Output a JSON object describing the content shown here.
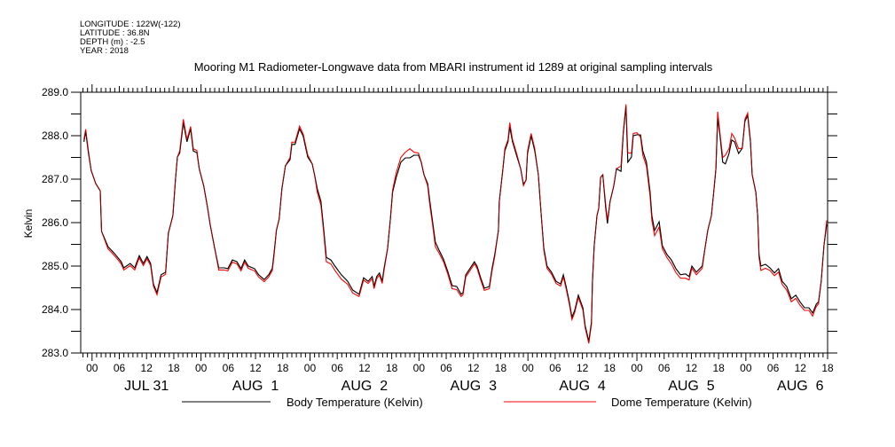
{
  "header": {
    "lines": [
      "LONGITUDE : 122W(-122)",
      "LATITUDE : 36.8N",
      "DEPTH (m) : -2.5",
      "YEAR : 2018"
    ]
  },
  "chart_data": {
    "type": "line",
    "title": "Mooring M1 Radiometer-Longwave data from MBARI instrument id 1289 at original sampling intervals",
    "ylabel": "Kelvin",
    "xlabel": "",
    "x_units": "hours since JUL 31 00:00 (2018)",
    "xlim": [
      -2.5,
      162
    ],
    "ylim": [
      283.0,
      289.0
    ],
    "y_ticks": [
      283.0,
      284.0,
      285.0,
      286.0,
      287.0,
      288.0,
      289.0
    ],
    "y_tick_labels": [
      "283.0",
      "284.0",
      "285.0",
      "286.0",
      "287.0",
      "288.0",
      "289.0"
    ],
    "x_tick_labels_cycle": [
      "00",
      "06",
      "12",
      "18"
    ],
    "day_labels": [
      "JUL 31",
      "AUG  1",
      "AUG  2",
      "AUG  3",
      "AUG  4",
      "AUG  5",
      "AUG  6"
    ],
    "legend": "bottom",
    "grid": false,
    "x": [
      -1.8,
      -1.4,
      -0.8,
      -0.2,
      0.8,
      1.8,
      2.1,
      3.5,
      5.1,
      6.4,
      7.0,
      8.4,
      9.4,
      10.4,
      11.3,
      12.1,
      12.9,
      13.5,
      14.3,
      15.2,
      16.2,
      16.8,
      17.8,
      18.4,
      18.8,
      19.3,
      20.1,
      20.9,
      21.7,
      22.3,
      23.1,
      23.6,
      24.6,
      25.4,
      26.0,
      27.0,
      27.9,
      29.1,
      29.9,
      30.9,
      31.9,
      32.8,
      33.6,
      34.4,
      35.8,
      36.7,
      37.9,
      38.9,
      39.7,
      40.1,
      40.6,
      41.2,
      41.8,
      42.6,
      43.6,
      44.0,
      44.7,
      45.7,
      46.5,
      47.5,
      48.5,
      49.0,
      49.6,
      50.4,
      51.0,
      51.6,
      52.6,
      53.5,
      54.9,
      56.3,
      57.4,
      58.8,
      59.8,
      60.8,
      61.7,
      62.1,
      62.7,
      63.3,
      63.9,
      64.3,
      65.1,
      65.7,
      66.2,
      67.0,
      68.0,
      69.0,
      70.0,
      70.9,
      71.9,
      72.5,
      73.1,
      73.9,
      74.4,
      75.0,
      75.6,
      76.4,
      77.4,
      78.4,
      79.3,
      80.3,
      81.3,
      81.7,
      82.3,
      83.2,
      84.2,
      84.8,
      85.6,
      86.4,
      87.5,
      88.1,
      88.7,
      89.5,
      89.7,
      90.5,
      90.9,
      91.6,
      92.0,
      92.6,
      93.6,
      94.4,
      95.0,
      95.6,
      95.9,
      96.7,
      97.5,
      98.3,
      98.9,
      99.5,
      100.2,
      101.2,
      102.2,
      103.2,
      103.8,
      104.4,
      105.1,
      105.7,
      106.3,
      107.1,
      108.1,
      108.6,
      109.4,
      110.0,
      110.2,
      110.6,
      111.2,
      111.6,
      112.0,
      112.5,
      113.1,
      113.5,
      114.1,
      114.9,
      115.5,
      116.5,
      117.0,
      117.6,
      118.0,
      118.8,
      119.2,
      120.0,
      120.8,
      121.3,
      122.1,
      122.9,
      123.3,
      123.9,
      124.9,
      125.6,
      126.6,
      127.6,
      128.6,
      129.6,
      130.7,
      131.5,
      132.1,
      133.1,
      134.4,
      135.0,
      135.6,
      136.4,
      137.0,
      137.4,
      137.8,
      138.3,
      138.9,
      139.5,
      140.3,
      140.9,
      141.5,
      142.4,
      143.2,
      143.8,
      144.4,
      145.0,
      145.4,
      146.2,
      146.6,
      146.9,
      147.3,
      148.3,
      149.3,
      150.3,
      151.2,
      152.0,
      153.0,
      154.0,
      155.0,
      155.9,
      156.9,
      157.9,
      158.7,
      159.5,
      160.0,
      160.6,
      161.2,
      161.8
    ],
    "series": [
      {
        "name": "Body Temperature (Kelvin)",
        "color": "#000000",
        "values": [
          287.86,
          288.1,
          287.6,
          287.2,
          286.9,
          286.73,
          285.8,
          285.45,
          285.27,
          285.1,
          284.96,
          285.06,
          284.96,
          285.24,
          285.06,
          285.22,
          285.06,
          284.59,
          284.39,
          284.8,
          284.86,
          285.76,
          286.16,
          287.04,
          287.51,
          287.6,
          288.3,
          287.86,
          288.16,
          287.65,
          287.61,
          287.24,
          286.84,
          286.37,
          285.96,
          285.41,
          284.96,
          284.96,
          284.94,
          285.14,
          285.1,
          284.94,
          285.14,
          285.0,
          284.94,
          284.8,
          284.69,
          284.8,
          284.95,
          285.3,
          285.82,
          286.08,
          286.78,
          287.31,
          287.45,
          287.8,
          287.8,
          288.16,
          287.99,
          287.51,
          287.35,
          287.1,
          286.78,
          286.49,
          285.88,
          285.2,
          285.14,
          285.0,
          284.8,
          284.65,
          284.45,
          284.35,
          284.73,
          284.65,
          284.76,
          284.53,
          284.76,
          284.84,
          284.65,
          284.94,
          285.41,
          286.08,
          286.7,
          287.04,
          287.39,
          287.49,
          287.49,
          287.55,
          287.55,
          287.39,
          287.1,
          286.9,
          286.49,
          286.02,
          285.55,
          285.37,
          285.16,
          284.86,
          284.55,
          284.53,
          284.35,
          284.39,
          284.8,
          284.94,
          285.1,
          285.0,
          284.73,
          284.49,
          284.53,
          284.94,
          285.27,
          285.82,
          286.49,
          287.24,
          287.65,
          287.86,
          288.2,
          287.86,
          287.51,
          287.24,
          286.88,
          286.98,
          287.59,
          288.0,
          287.65,
          287.1,
          286.22,
          285.41,
          285.0,
          284.86,
          284.65,
          284.59,
          284.8,
          284.53,
          284.18,
          283.82,
          283.98,
          284.33,
          284.04,
          283.63,
          283.27,
          283.71,
          284.65,
          285.47,
          286.16,
          286.33,
          287.04,
          287.1,
          286.37,
          285.98,
          286.49,
          286.84,
          287.24,
          287.18,
          288.06,
          288.67,
          287.39,
          287.51,
          288.0,
          288.02,
          288.02,
          287.65,
          287.39,
          286.7,
          286.16,
          285.82,
          286.02,
          285.47,
          285.27,
          285.14,
          284.94,
          284.8,
          284.82,
          284.76,
          285.0,
          284.86,
          285.0,
          285.41,
          285.82,
          286.16,
          286.78,
          287.24,
          288.41,
          288.0,
          287.39,
          287.35,
          287.59,
          287.9,
          287.86,
          287.59,
          287.71,
          288.33,
          288.47,
          287.86,
          287.1,
          286.7,
          286.16,
          285.27,
          285.0,
          285.04,
          284.96,
          284.84,
          284.94,
          284.65,
          284.53,
          284.25,
          284.33,
          284.18,
          284.04,
          284.04,
          283.92,
          284.12,
          284.18,
          284.65,
          285.47,
          285.96
        ]
      },
      {
        "name": "Dome Temperature (Kelvin)",
        "color": "#ff0000",
        "values": [
          287.91,
          288.15,
          287.65,
          287.2,
          286.9,
          286.73,
          285.8,
          285.4,
          285.22,
          285.05,
          284.91,
          285.01,
          284.91,
          285.19,
          285.01,
          285.17,
          285.01,
          284.54,
          284.34,
          284.75,
          284.81,
          285.76,
          286.16,
          287.04,
          287.51,
          287.65,
          288.38,
          287.91,
          288.21,
          287.7,
          287.66,
          287.24,
          286.84,
          286.37,
          285.96,
          285.41,
          284.91,
          284.91,
          284.89,
          285.09,
          285.05,
          284.89,
          285.09,
          284.95,
          284.89,
          284.75,
          284.64,
          284.75,
          284.9,
          285.25,
          285.82,
          286.08,
          286.78,
          287.31,
          287.5,
          287.85,
          287.85,
          288.22,
          288.04,
          287.56,
          287.35,
          287.1,
          286.7,
          286.4,
          285.8,
          285.1,
          285.05,
          284.9,
          284.7,
          284.58,
          284.38,
          284.3,
          284.68,
          284.6,
          284.71,
          284.48,
          284.71,
          284.79,
          284.6,
          284.89,
          285.41,
          286.08,
          286.75,
          287.15,
          287.5,
          287.62,
          287.7,
          287.62,
          287.6,
          287.39,
          287.1,
          286.85,
          286.4,
          285.95,
          285.45,
          285.3,
          285.1,
          284.8,
          284.48,
          284.46,
          284.3,
          284.34,
          284.75,
          284.89,
          285.05,
          284.95,
          284.68,
          284.44,
          284.48,
          284.89,
          285.22,
          285.82,
          286.49,
          287.24,
          287.7,
          287.91,
          288.3,
          287.91,
          287.56,
          287.24,
          286.85,
          286.98,
          287.64,
          288.05,
          287.7,
          287.1,
          286.22,
          285.36,
          284.95,
          284.81,
          284.6,
          284.54,
          284.75,
          284.48,
          284.13,
          283.77,
          283.93,
          284.28,
          283.99,
          283.58,
          283.22,
          283.66,
          284.6,
          285.47,
          286.16,
          286.33,
          287.04,
          287.1,
          286.45,
          286.05,
          286.49,
          286.84,
          287.24,
          287.3,
          288.1,
          288.72,
          287.6,
          287.6,
          288.05,
          288.07,
          287.97,
          287.55,
          287.3,
          286.6,
          286.05,
          285.7,
          285.9,
          285.4,
          285.2,
          285.05,
          284.85,
          284.72,
          284.72,
          284.68,
          284.95,
          284.8,
          284.95,
          285.41,
          285.82,
          286.16,
          286.78,
          287.24,
          288.55,
          288.05,
          287.5,
          287.55,
          287.7,
          288.05,
          287.95,
          287.7,
          287.71,
          288.38,
          288.52,
          287.91,
          287.1,
          286.7,
          286.16,
          285.2,
          284.9,
          284.95,
          284.9,
          284.78,
          284.86,
          284.58,
          284.45,
          284.18,
          284.26,
          284.1,
          283.98,
          283.98,
          283.85,
          284.07,
          284.13,
          284.65,
          285.47,
          286.05
        ]
      }
    ]
  }
}
